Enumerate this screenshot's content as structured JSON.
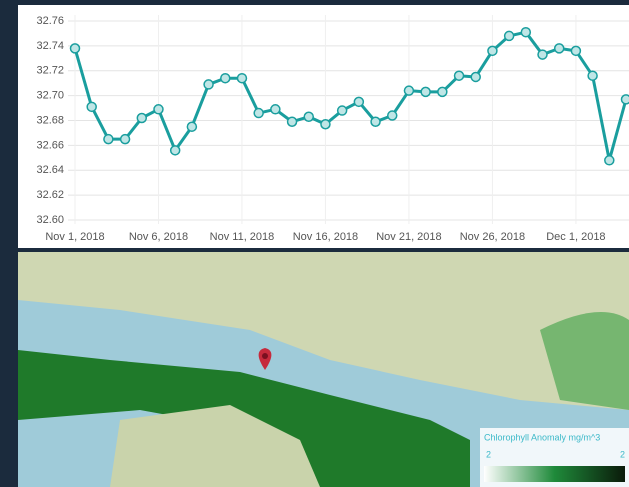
{
  "chart_data": {
    "type": "line",
    "x": [
      "2018-11-01",
      "2018-11-02",
      "2018-11-03",
      "2018-11-04",
      "2018-11-05",
      "2018-11-06",
      "2018-11-07",
      "2018-11-08",
      "2018-11-09",
      "2018-11-10",
      "2018-11-11",
      "2018-11-12",
      "2018-11-13",
      "2018-11-14",
      "2018-11-15",
      "2018-11-16",
      "2018-11-17",
      "2018-11-18",
      "2018-11-19",
      "2018-11-20",
      "2018-11-21",
      "2018-11-22",
      "2018-11-23",
      "2018-11-24",
      "2018-11-25",
      "2018-11-26",
      "2018-11-27",
      "2018-11-28",
      "2018-11-29",
      "2018-11-30",
      "2018-12-01",
      "2018-12-02",
      "2018-12-03",
      "2018-12-04"
    ],
    "series": [
      {
        "color": "#1a9e9e",
        "values": [
          32.738,
          32.691,
          32.665,
          32.665,
          32.682,
          32.689,
          32.656,
          32.675,
          32.709,
          32.714,
          32.714,
          32.686,
          32.689,
          32.679,
          32.683,
          32.677,
          32.688,
          32.695,
          32.679,
          32.684,
          32.704,
          32.703,
          32.703,
          32.716,
          32.715,
          32.736,
          32.748,
          32.751,
          32.733,
          32.738,
          32.736,
          32.716,
          32.648,
          32.697
        ]
      }
    ],
    "xlim": [
      "2018-11-01",
      "2018-12-04"
    ],
    "xticks": [
      {
        "value": "2018-11-01",
        "label": "Nov 1, 2018"
      },
      {
        "value": "2018-11-06",
        "label": "Nov 6, 2018"
      },
      {
        "value": "2018-11-11",
        "label": "Nov 11, 2018"
      },
      {
        "value": "2018-11-16",
        "label": "Nov 16, 2018"
      },
      {
        "value": "2018-11-21",
        "label": "Nov 21, 2018"
      },
      {
        "value": "2018-11-26",
        "label": "Nov 26, 2018"
      },
      {
        "value": "2018-12-01",
        "label": "Dec 1, 2018"
      }
    ],
    "ylim": [
      32.6,
      32.76
    ],
    "yticks": [
      {
        "value": 32.6,
        "label": "32.60"
      },
      32.62,
      32.64,
      32.66,
      32.68,
      {
        "value": 32.7,
        "label": "32.70"
      },
      32.72,
      32.74,
      32.76
    ],
    "grid": true
  },
  "map": {
    "legend": {
      "title": "Chlorophyll Anomaly mg/m^3",
      "min_label": "2",
      "max_label": "2"
    }
  }
}
